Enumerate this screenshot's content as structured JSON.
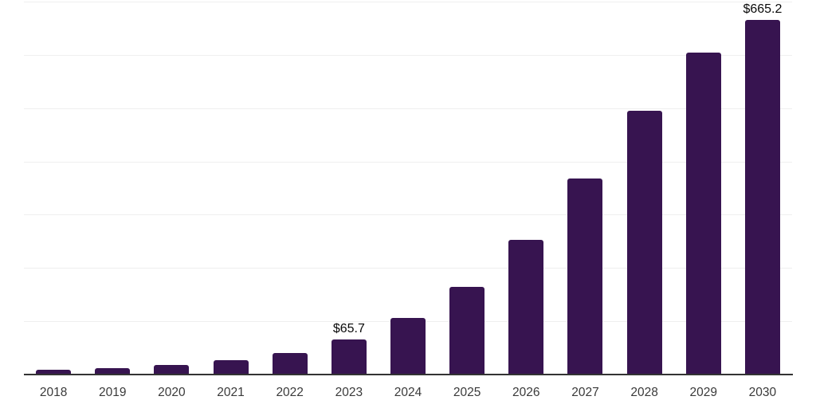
{
  "chart_data": {
    "type": "bar",
    "title": "",
    "xlabel": "",
    "ylabel": "",
    "categories": [
      "2018",
      "2019",
      "2020",
      "2021",
      "2022",
      "2023",
      "2024",
      "2025",
      "2026",
      "2027",
      "2028",
      "2029",
      "2030"
    ],
    "values": [
      9.5,
      12.5,
      18,
      26.5,
      41,
      65.7,
      106,
      165,
      253,
      368,
      495,
      605,
      665.2
    ],
    "data_labels": [
      {
        "category": "2023",
        "text": "$65.7"
      },
      {
        "category": "2030",
        "text": "$665.2"
      }
    ],
    "ylim": [
      0,
      700
    ],
    "grid_step": 100,
    "grid": "horizontal",
    "y_tick_labels_visible": false,
    "legend": "none"
  },
  "colors": {
    "bar": "#371450",
    "grid": "#efefef",
    "axis_line": "#333333",
    "tick_label": "#3a3a3a",
    "data_label": "#0a0a0a",
    "background": "#ffffff"
  }
}
